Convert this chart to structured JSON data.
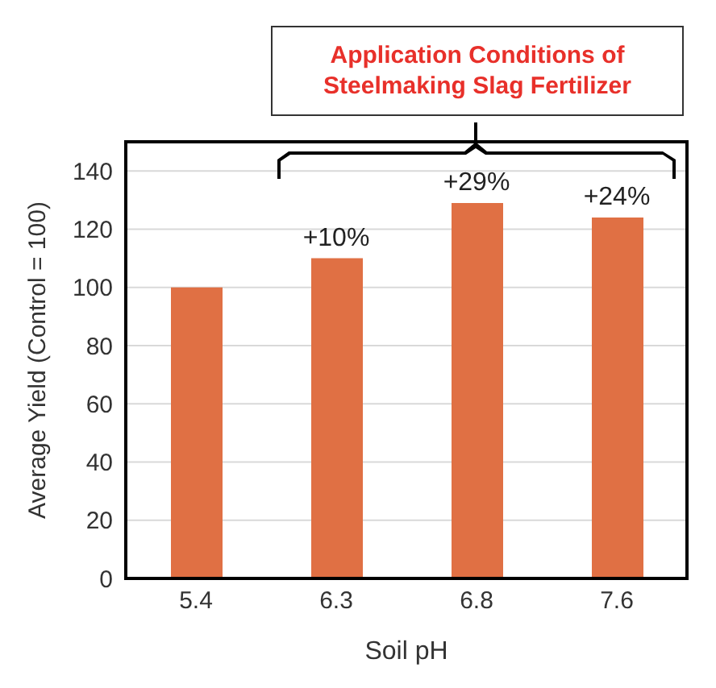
{
  "chart_data": {
    "type": "bar",
    "categories": [
      "5.4",
      "6.3",
      "6.8",
      "7.6"
    ],
    "values": [
      100,
      110,
      129,
      124
    ],
    "color": "#e07044",
    "xlabel": "Soil pH",
    "ylabel": "Average Yield (Control = 100)",
    "ylim": [
      0,
      150
    ],
    "yticks": [
      0,
      20,
      40,
      60,
      80,
      100,
      120,
      140
    ],
    "grid": "y",
    "annotations": [
      "Application Conditions of Steelmaking Slag Fertilizer",
      {
        "text": "+10%",
        "x": "6.3",
        "y": 110
      },
      {
        "text": "+29%",
        "x": "6.8",
        "y": 129
      },
      {
        "text": "+24%",
        "x": "7.6",
        "y": 124
      }
    ]
  }
}
